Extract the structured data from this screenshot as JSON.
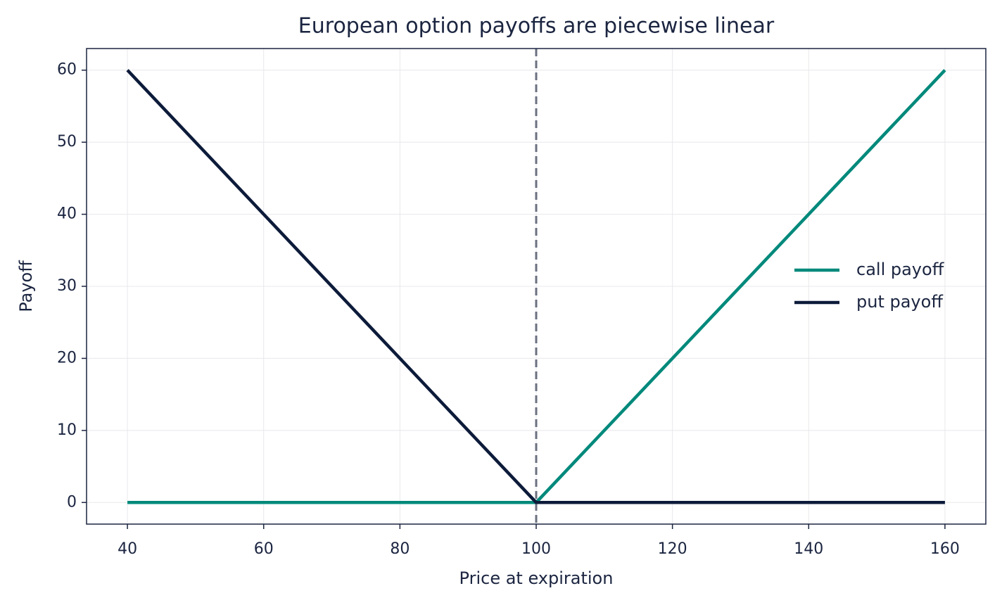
{
  "chart_data": {
    "type": "line",
    "title": "European option payoffs are piecewise linear",
    "x_label": "Price at expiration",
    "y_label": "Payoff",
    "x": [
      40,
      100,
      160
    ],
    "series": [
      {
        "name": "call payoff",
        "color": "#00897b",
        "values": [
          0,
          0,
          60
        ]
      },
      {
        "name": "put payoff",
        "color": "#0d1b3a",
        "values": [
          60,
          0,
          0
        ]
      }
    ],
    "vlines": [
      100
    ],
    "vline_color": "#6b7080",
    "xlim": [
      34,
      166
    ],
    "ylim": [
      -3,
      63
    ],
    "xticks": [
      40,
      60,
      80,
      100,
      120,
      140,
      160
    ],
    "yticks": [
      0,
      10,
      20,
      30,
      40,
      50,
      60
    ],
    "grid": true,
    "legend": "center right"
  }
}
